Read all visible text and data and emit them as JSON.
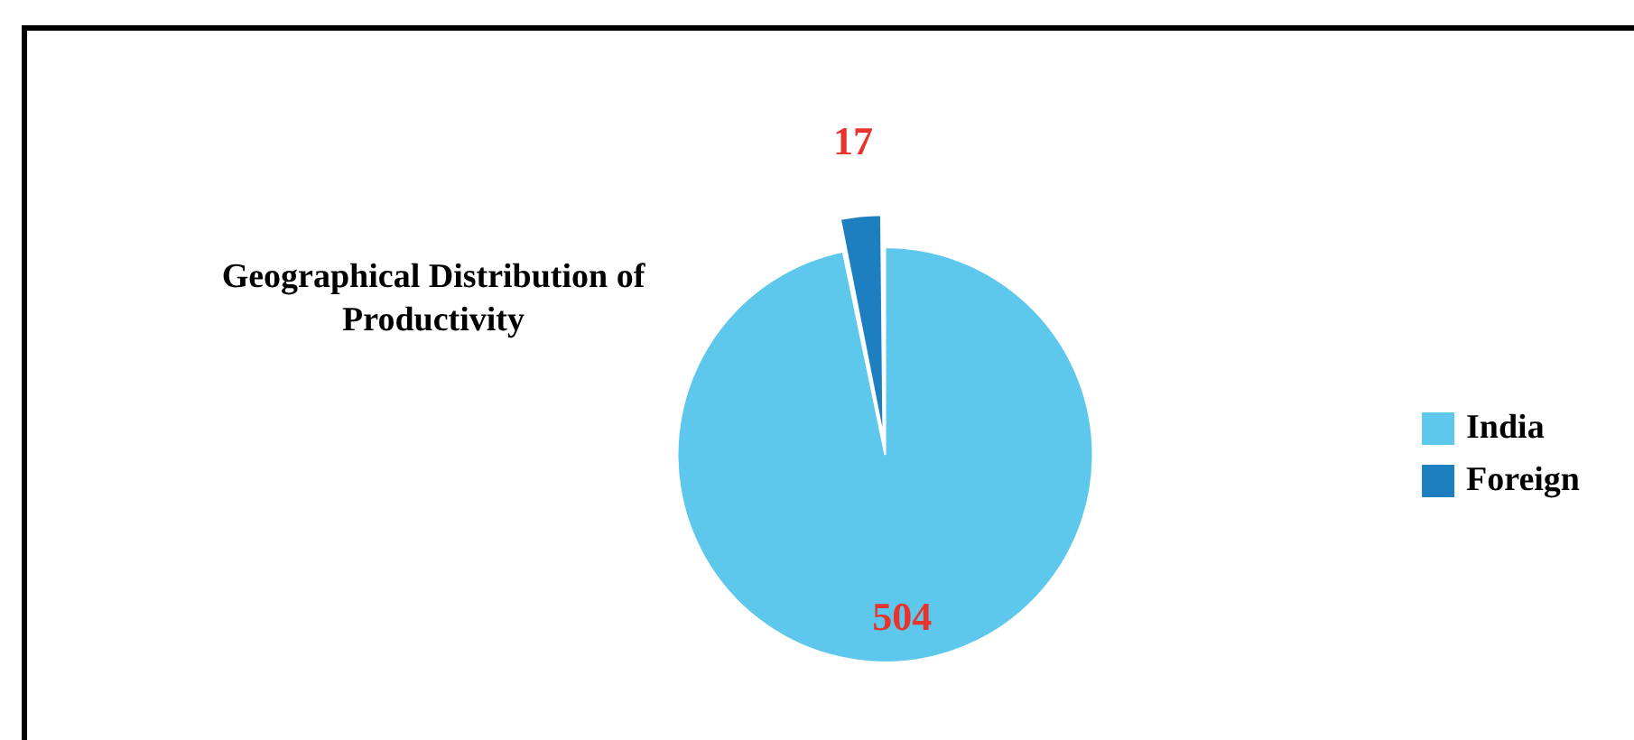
{
  "chart_data": {
    "type": "pie",
    "title": "Geographical Distribution of Productivity",
    "categories": [
      "India",
      "Foreign"
    ],
    "values": [
      504,
      17
    ],
    "colors": [
      "#5ec8ec",
      "#1e7fc0"
    ],
    "data_labels": true,
    "legend": "right"
  }
}
